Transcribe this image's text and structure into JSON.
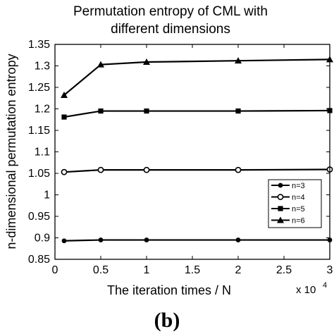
{
  "chart_data": {
    "type": "line",
    "title_lines": [
      "Permutation entropy of CML with",
      "different dimensions"
    ],
    "xlabel": "The iteration times / N",
    "ylabel": "n-dimensional permutation entropy",
    "x_exponent_base": "x 10",
    "x_exponent_power": "4",
    "xlim": [
      0,
      30000
    ],
    "ylim": [
      0.85,
      1.35
    ],
    "x_ticks": [
      0,
      5000,
      10000,
      15000,
      20000,
      25000,
      30000
    ],
    "x_tick_labels": [
      "0",
      "0.5",
      "1",
      "1.5",
      "2",
      "2.5",
      "3"
    ],
    "y_ticks": [
      0.85,
      0.9,
      0.95,
      1.0,
      1.05,
      1.1,
      1.15,
      1.2,
      1.25,
      1.3,
      1.35
    ],
    "y_tick_labels": [
      "0.85",
      "0.9",
      "0.95",
      "1",
      "1.05",
      "1.1",
      "1.15",
      "1.2",
      "1.25",
      "1.3",
      "1.35"
    ],
    "grid": false,
    "legend_position": "lower-right",
    "x": [
      1000,
      5000,
      10000,
      20000,
      30000
    ],
    "series": [
      {
        "name": "n=3",
        "marker": "filled-circle",
        "values": [
          0.893,
          0.895,
          0.895,
          0.895,
          0.895
        ]
      },
      {
        "name": "n=4",
        "marker": "open-circle",
        "values": [
          1.053,
          1.058,
          1.058,
          1.058,
          1.059
        ]
      },
      {
        "name": "n=5",
        "marker": "filled-square",
        "values": [
          1.181,
          1.195,
          1.195,
          1.195,
          1.196
        ]
      },
      {
        "name": "n=6",
        "marker": "filled-triangle",
        "values": [
          1.232,
          1.303,
          1.309,
          1.312,
          1.315
        ]
      }
    ],
    "line_color": "#000000"
  },
  "panel_label": "(b)"
}
